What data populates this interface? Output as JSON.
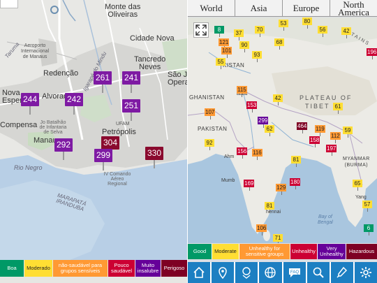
{
  "left_map": {
    "place_labels": {
      "monte_das_oliveiras": "Monte das\nOliveiras",
      "cidade_nova": "Cidade Nova",
      "tancredo_neves": "Tancredo\nNeves",
      "aeroporto": "Aeroporto\nInternacional\nde Manaus",
      "redencao": "Redenção",
      "alvorada": "Alvorada",
      "nova_esperanca": "Nova\nEsperança",
      "sao_jose": "São Jos\nOpera",
      "compensa": "Compensa",
      "batalhao": "Jo Batalhão\nde Infantaria\nde Selva",
      "manaus": "Manaus",
      "ufam": "UFAM",
      "petropolis": "Petrópolis",
      "comando": "IV Comando\nAéreo\nRegional",
      "igarape": "Igarapé do Mindu",
      "tarumas": "Taruma",
      "marapata": "MARAPATÁ\nIRANDUBA",
      "rio_negro": "Rio Negro"
    },
    "markers": [
      {
        "value": "244",
        "level": "very-unhealthy"
      },
      {
        "value": "242",
        "level": "very-unhealthy"
      },
      {
        "value": "261",
        "level": "very-unhealthy"
      },
      {
        "value": "241",
        "level": "very-unhealthy"
      },
      {
        "value": "251",
        "level": "very-unhealthy"
      },
      {
        "value": "292",
        "level": "very-unhealthy"
      },
      {
        "value": "304",
        "level": "hazardous"
      },
      {
        "value": "299",
        "level": "very-unhealthy"
      },
      {
        "value": "330",
        "level": "hazardous"
      }
    ],
    "legend": [
      {
        "label": "Boa",
        "color": "#009966",
        "text_color": "#ffffff"
      },
      {
        "label": "Moderado",
        "color": "#ffde33",
        "text_color": "#222222"
      },
      {
        "label": "não-saudável para grupos sensíveis",
        "color": "#ff9933",
        "text_color": "#ffffff"
      },
      {
        "label": "Pouco saudável",
        "color": "#cc0033",
        "text_color": "#ffffff"
      },
      {
        "label": "Muito insalubre",
        "color": "#660099",
        "text_color": "#ffffff"
      },
      {
        "label": "Perigoso",
        "color": "#7e0023",
        "text_color": "#ffffff"
      }
    ]
  },
  "right_panel": {
    "tabs": [
      "World",
      "Asia",
      "Europe",
      "North America"
    ],
    "region_labels": {
      "kistan": "KISTAN",
      "ghanistan": "GHANISTAN",
      "pakistan": "PAKISTAN",
      "plateau": "PLATEAU OF",
      "tibet": "TIBET",
      "myanmar": "MYANMAR\n(BURMA)",
      "bay": "Bay of\nBengal",
      "tains": "TAINS"
    },
    "city_labels": {
      "islamabad": "abad",
      "mumbai": "Mumb",
      "chennai": "hennai",
      "yang": "Yang",
      "ahm": "Ahm"
    },
    "stations": [
      {
        "v": "8",
        "c": "g"
      },
      {
        "v": "37",
        "c": "y"
      },
      {
        "v": "70",
        "c": "y"
      },
      {
        "v": "53",
        "c": "y"
      },
      {
        "v": "80",
        "c": "y"
      },
      {
        "v": "56",
        "c": "y"
      },
      {
        "v": "42",
        "c": "y"
      },
      {
        "v": "121",
        "c": "o"
      },
      {
        "v": "101",
        "c": "o"
      },
      {
        "v": "90",
        "c": "y"
      },
      {
        "v": "68",
        "c": "y"
      },
      {
        "v": "196",
        "c": "r"
      },
      {
        "v": "93",
        "c": "y"
      },
      {
        "v": "55",
        "c": "y"
      },
      {
        "v": "115",
        "c": "o"
      },
      {
        "v": "42",
        "c": "y"
      },
      {
        "v": "153",
        "c": "r"
      },
      {
        "v": "107",
        "c": "o"
      },
      {
        "v": "61",
        "c": "y"
      },
      {
        "v": "299",
        "c": "p"
      },
      {
        "v": "62",
        "c": "y"
      },
      {
        "v": "464",
        "c": "m"
      },
      {
        "v": "119",
        "c": "o"
      },
      {
        "v": "112",
        "c": "o"
      },
      {
        "v": "59",
        "c": "y"
      },
      {
        "v": "92",
        "c": "y"
      },
      {
        "v": "158",
        "c": "r"
      },
      {
        "v": "197",
        "c": "r"
      },
      {
        "v": "156",
        "c": "r"
      },
      {
        "v": "116",
        "c": "o"
      },
      {
        "v": "81",
        "c": "y"
      },
      {
        "v": "169",
        "c": "r"
      },
      {
        "v": "180",
        "c": "r"
      },
      {
        "v": "129",
        "c": "o"
      },
      {
        "v": "106",
        "c": "o"
      },
      {
        "v": "71",
        "c": "y"
      },
      {
        "v": "81",
        "c": "y"
      },
      {
        "v": "65",
        "c": "y"
      },
      {
        "v": "57",
        "c": "y"
      },
      {
        "v": "6",
        "c": "g"
      }
    ],
    "legend": [
      {
        "label": "Good",
        "color": "#009966",
        "text_color": "#ffffff"
      },
      {
        "label": "Moderate",
        "color": "#ffde33",
        "text_color": "#222222"
      },
      {
        "label": "Unhealthy for sensitive groups",
        "color": "#ff9933",
        "text_color": "#ffffff"
      },
      {
        "label": "Unhealthy",
        "color": "#cc0033",
        "text_color": "#ffffff"
      },
      {
        "label": "Very Unhealthy",
        "color": "#660099",
        "text_color": "#ffffff"
      },
      {
        "label": "Hazardous",
        "color": "#7e0023",
        "text_color": "#ffffff"
      }
    ],
    "nav_icons": [
      "home-icon",
      "location-pin-icon",
      "face-mask-icon",
      "globe-icon",
      "faq-icon",
      "search-icon",
      "thermometer-icon",
      "settings-gear-icon"
    ],
    "faq_label": "FAQ"
  }
}
